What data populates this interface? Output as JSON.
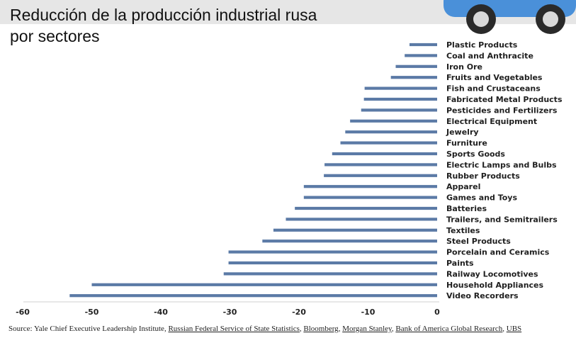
{
  "chart_data": {
    "type": "bar",
    "orientation": "horizontal",
    "title_lines": [
      "Reducción de la producción industrial rusa",
      "por sectores"
    ],
    "categories": [
      "Plastic Products",
      "Coal and Anthracite",
      "Iron Ore",
      "Fruits and Vegetables",
      "Fish and Crustaceans",
      "Fabricated Metal Products",
      "Pesticides and Fertilizers",
      "Electrical Equipment",
      "Jewelry",
      "Furniture",
      "Sports Goods",
      "Electric Lamps and Bulbs",
      "Rubber Products",
      "Apparel",
      "Games and Toys",
      "Batteries",
      "Trailers, and Semitrailers",
      "Textiles",
      "Steel Products",
      "Porcelain and Ceramics",
      "Paints",
      "Railway Locomotives",
      "Household Appliances",
      "Video Recorders"
    ],
    "values": [
      -4,
      -4.7,
      -6,
      -6.7,
      -10.5,
      -10.6,
      -11,
      -12.6,
      -13.3,
      -14,
      -15.2,
      -16.3,
      -16.4,
      -19.3,
      -19.3,
      -20.6,
      -21.9,
      -23.7,
      -25.3,
      -30.2,
      -30.2,
      -30.9,
      -50,
      -53.2
    ],
    "x_ticks": [
      -60,
      -50,
      -40,
      -30,
      -20,
      -10,
      0
    ],
    "xlim": [
      -60,
      0
    ],
    "xlabel": "",
    "ylabel": "",
    "bar_color": "#5b7aa6",
    "grid": false,
    "legend": "none"
  },
  "source": {
    "prefix": "Source: Yale Chief Executive Leadership Institute, ",
    "links": [
      "Russian Federal Service of State Statistics",
      "Bloomberg",
      "Morgan Stanley",
      "Bank of America Global Research",
      "UBS"
    ]
  },
  "decoration": {
    "car_body_color": "#4a90d9",
    "wheel_color": "#2a2a2a",
    "hub_color": "#d9d9d9"
  }
}
